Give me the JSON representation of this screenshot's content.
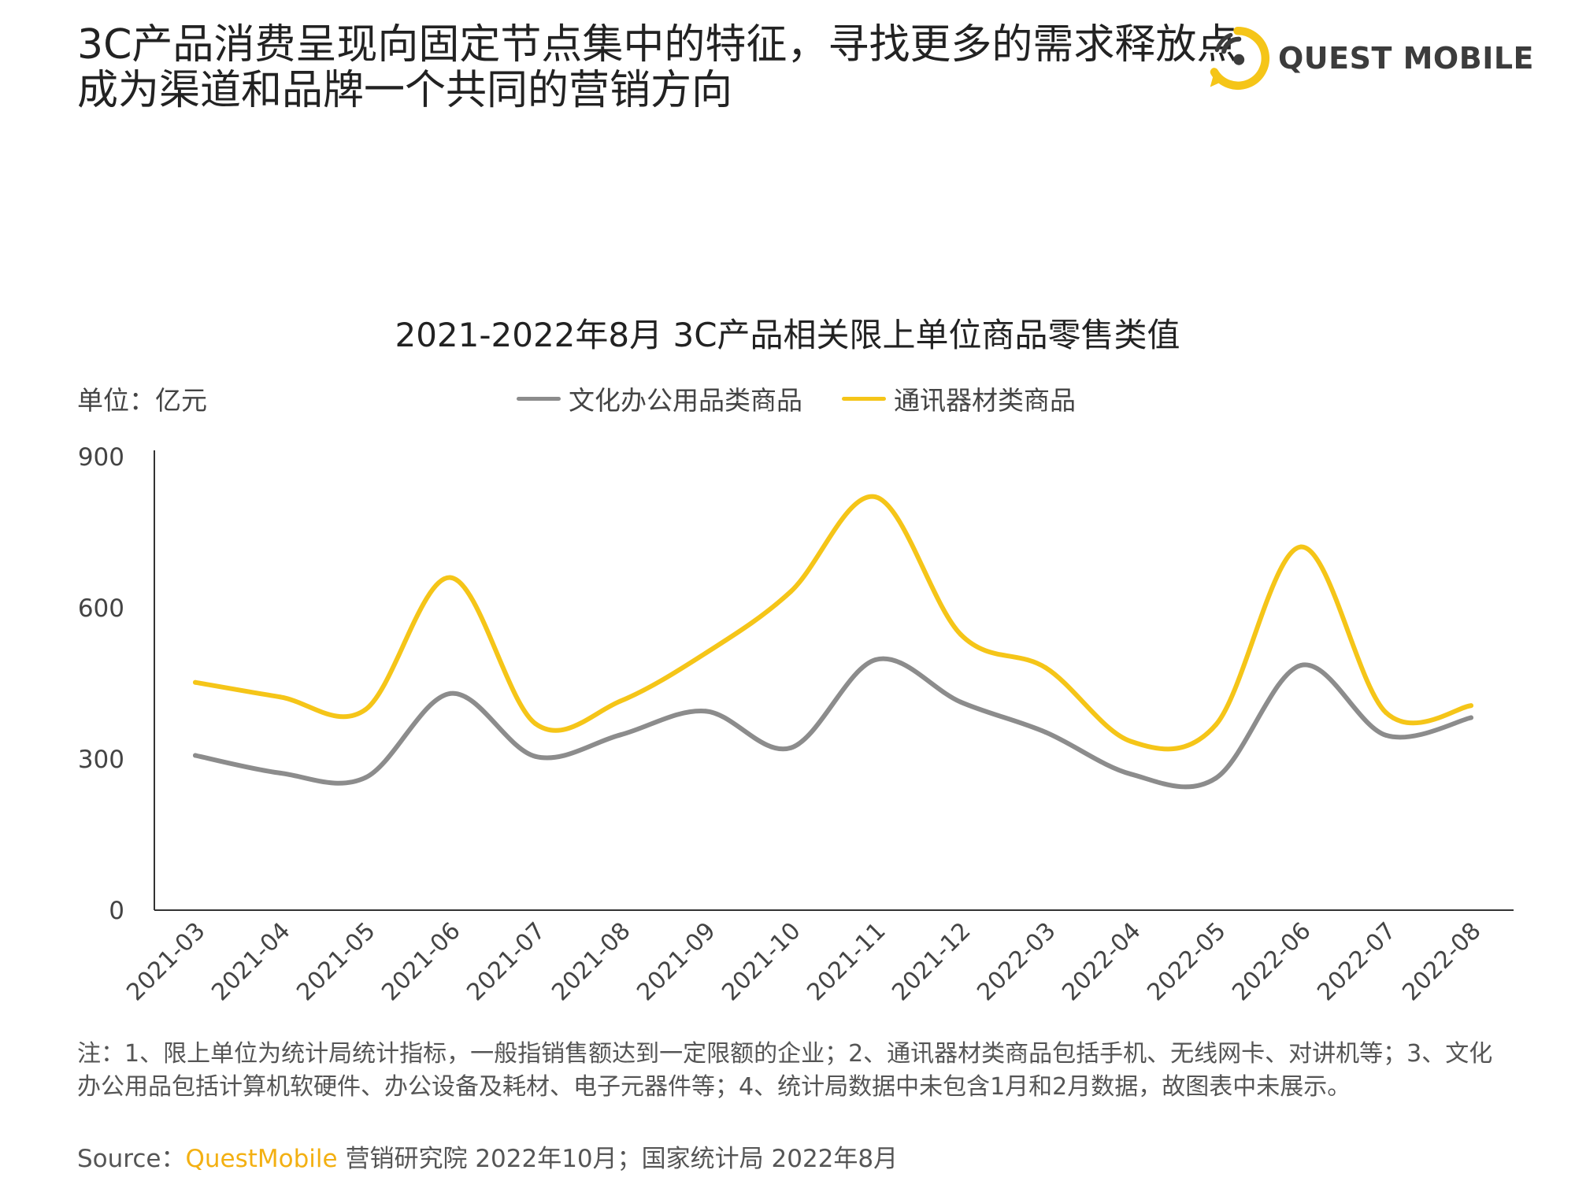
{
  "header": {
    "headline_line1": "3C产品消费呈现向固定节点集中的特征，寻找更多的需求释放点",
    "headline_line2": "成为渠道和品牌一个共同的营销方向",
    "brand_name": "QUEST MOBILE"
  },
  "colors": {
    "series_office": "#8c8c8c",
    "series_telecom": "#f5c518",
    "axis": "#333333",
    "brand_yellow": "#f5c518"
  },
  "chart_data": {
    "type": "line",
    "title": "2021-2022年8月 3C产品相关限上单位商品零售类值",
    "unit_label": "单位：亿元",
    "categories": [
      "2021-03",
      "2021-04",
      "2021-05",
      "2021-06",
      "2021-07",
      "2021-08",
      "2021-09",
      "2021-10",
      "2021-11",
      "2021-12",
      "2022-03",
      "2022-04",
      "2022-05",
      "2022-06",
      "2022-07",
      "2022-08"
    ],
    "series": [
      {
        "name": "文化办公用品类商品",
        "values": [
          307,
          272,
          263,
          430,
          305,
          348,
          395,
          322,
          497,
          413,
          353,
          270,
          262,
          486,
          347,
          382
        ]
      },
      {
        "name": "通讯器材类商品",
        "values": [
          452,
          423,
          398,
          660,
          370,
          415,
          510,
          632,
          820,
          547,
          481,
          335,
          368,
          721,
          392,
          406
        ]
      }
    ],
    "ylim": [
      0,
      900
    ],
    "yticks": [
      0,
      300,
      600,
      900
    ],
    "legend_position": "top-center",
    "grid": false
  },
  "footnote": "注：1、限上单位为统计局统计指标，一般指销售额达到一定限额的企业；2、通讯器材类商品包括手机、无线网卡、对讲机等；3、文化办公用品包括计算机软硬件、办公设备及耗材、电子元器件等；4、统计局数据中未包含1月和2月数据，故图表中未展示。",
  "source": {
    "prefix": "Source：",
    "brand": "QuestMobile",
    "rest": " 营销研究院 2022年10月；国家统计局 2022年8月"
  }
}
